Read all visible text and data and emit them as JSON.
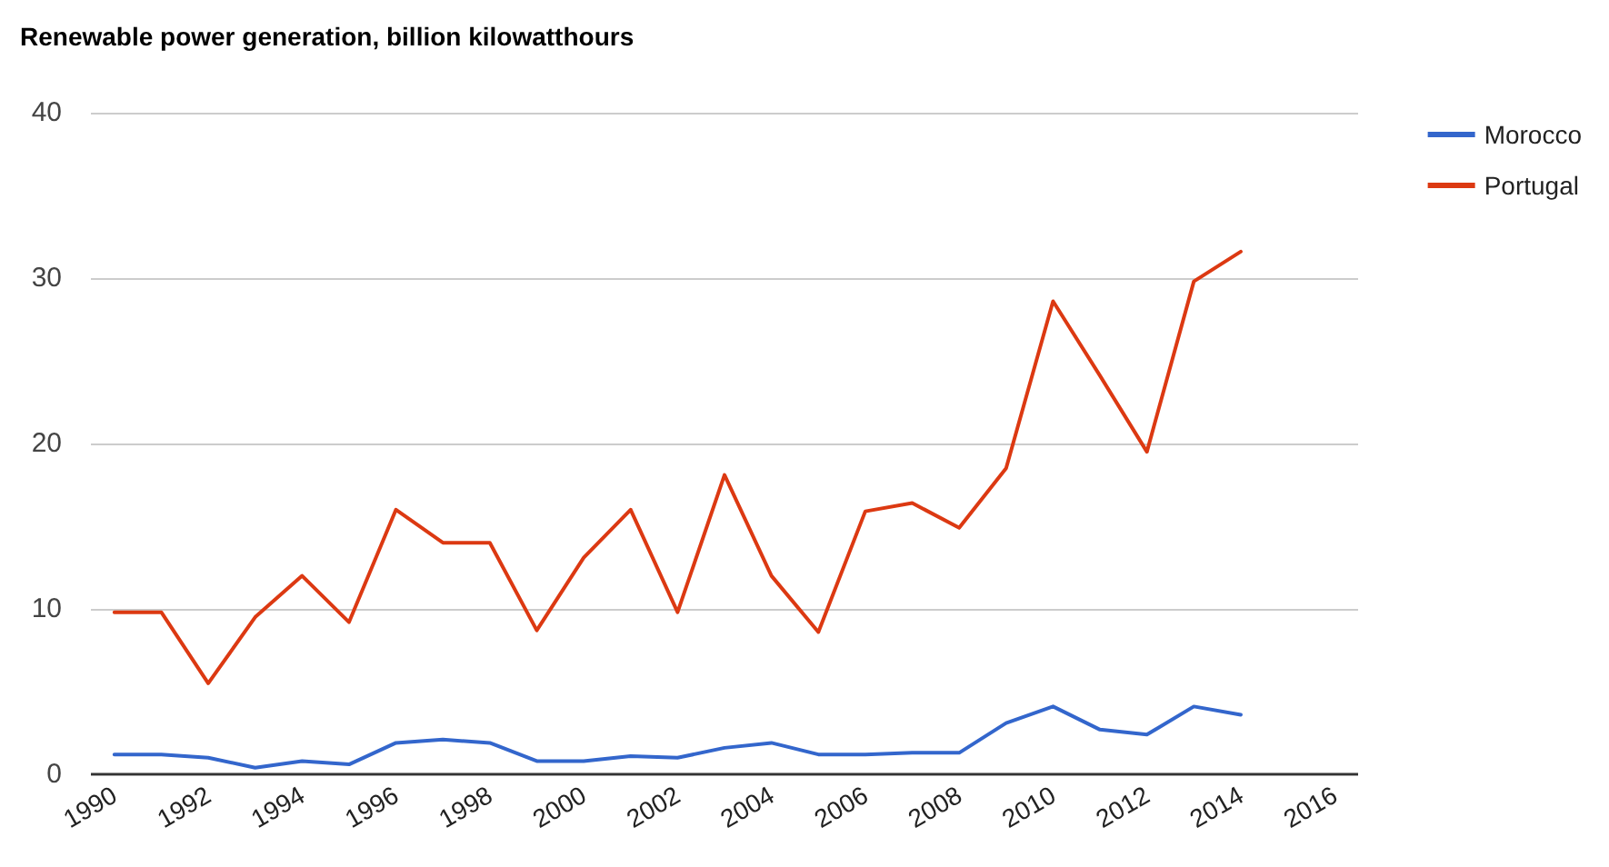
{
  "chart_data": {
    "type": "line",
    "title": "Renewable power generation, billion kilowatthours",
    "x": [
      1990,
      1991,
      1992,
      1993,
      1994,
      1995,
      1996,
      1997,
      1998,
      1999,
      2000,
      2001,
      2002,
      2003,
      2004,
      2005,
      2006,
      2007,
      2008,
      2009,
      2010,
      2011,
      2012,
      2013,
      2014
    ],
    "series": [
      {
        "name": "Morocco",
        "color": "#3366cc",
        "values": [
          1.2,
          1.2,
          1.0,
          0.4,
          0.8,
          0.6,
          1.9,
          2.1,
          1.9,
          0.8,
          0.8,
          1.1,
          1.0,
          1.6,
          1.9,
          1.2,
          1.2,
          1.3,
          1.3,
          3.1,
          4.1,
          2.7,
          2.4,
          4.1,
          3.6
        ]
      },
      {
        "name": "Portugal",
        "color": "#dc3912",
        "values": [
          9.8,
          9.8,
          5.5,
          9.5,
          12.0,
          9.2,
          16.0,
          14.0,
          14.0,
          8.7,
          13.1,
          16.0,
          9.8,
          18.1,
          12.0,
          8.6,
          15.9,
          16.4,
          14.9,
          18.5,
          28.6,
          24.1,
          19.5,
          29.8,
          31.6
        ]
      }
    ],
    "xlim": [
      1989.5,
      2016.5
    ],
    "xticks": [
      1990,
      1992,
      1994,
      1996,
      1998,
      2000,
      2002,
      2004,
      2006,
      2008,
      2010,
      2012,
      2014,
      2016
    ],
    "ylim": [
      0,
      40
    ],
    "yticks": [
      0,
      10,
      20,
      30,
      40
    ],
    "grid": "y",
    "legend": "right",
    "marker": "none",
    "line_style": "solid"
  }
}
